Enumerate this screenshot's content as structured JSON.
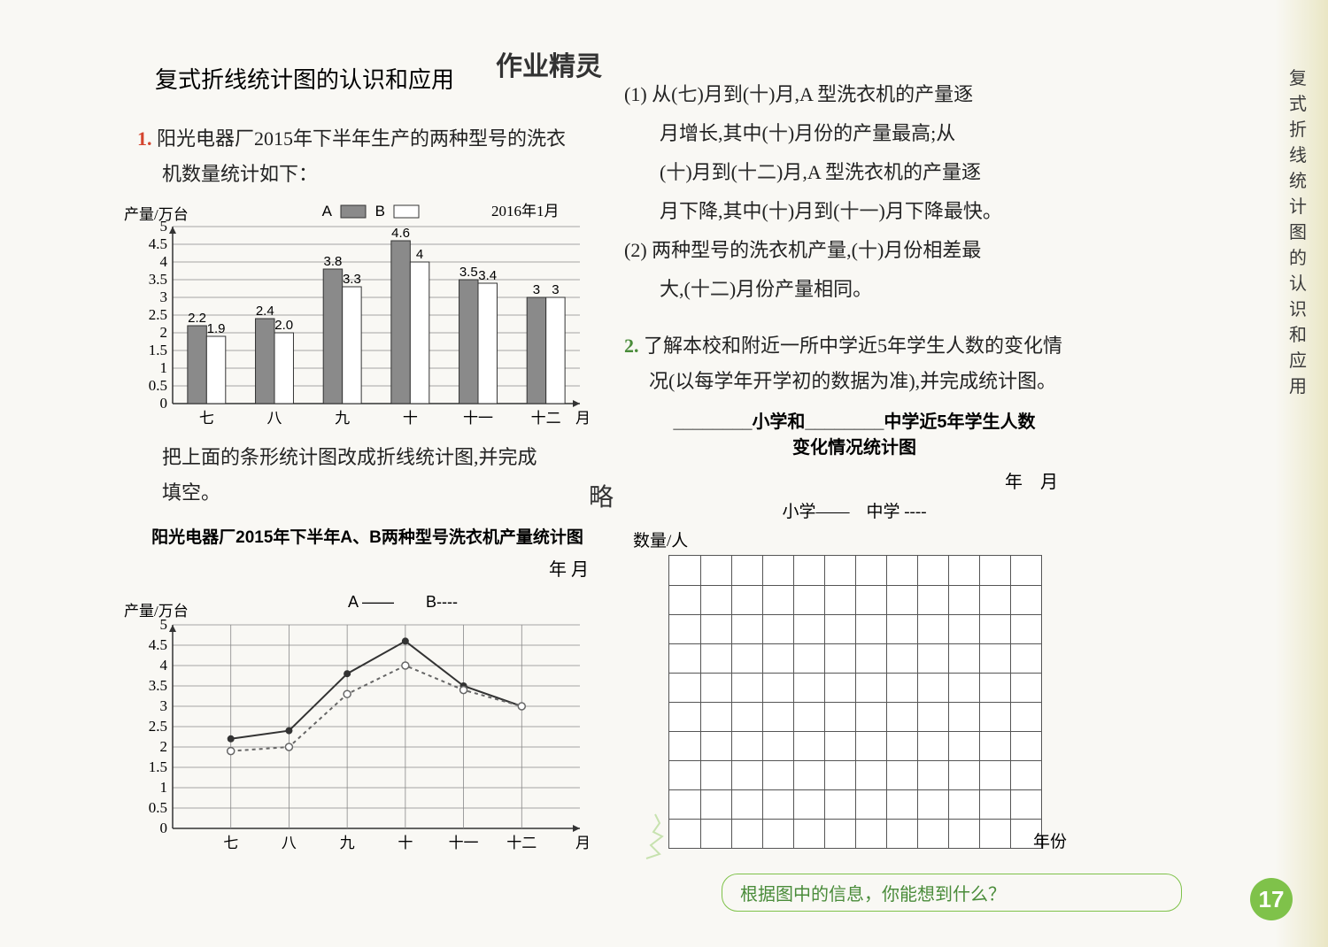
{
  "page_number": "17",
  "vertical_tab": "复式折线统计图的认识和应用",
  "top_annotation": "作业精灵",
  "title": "复式折线统计图的认识和应用",
  "q1": {
    "number": "1.",
    "text_line1": "阳光电器厂2015年下半年生产的两种型号的洗衣",
    "text_line2": "机数量统计如下：",
    "below_bar_1": "把上面的条形统计图改成折线统计图,并完成",
    "below_bar_2": "填空。",
    "line_title": "阳光电器厂2015年下半年A、B两种型号洗衣机产量统计图",
    "date_blank": "年 月"
  },
  "bar_chart": {
    "type": "bar",
    "y_axis_label": "产量/万台",
    "x_axis_label": "月份",
    "legend": {
      "A": "A",
      "B": "B",
      "date": "2016年1月"
    },
    "categories": [
      "七",
      "八",
      "九",
      "十",
      "十一",
      "十二"
    ],
    "series_A": [
      2.2,
      2.4,
      3.8,
      4.6,
      3.5,
      3.0
    ],
    "series_B": [
      1.9,
      2.0,
      3.3,
      4.0,
      3.4,
      3.0
    ],
    "color_A": "#8a8a8a",
    "color_B": "#ffffff",
    "border_color": "#333333",
    "grid_color": "#888888",
    "ylim": [
      0,
      5
    ],
    "ytick_step": 0.5,
    "value_labels_A": [
      "2.2",
      "2.4",
      "3.8",
      "4.6",
      "3.5",
      "3"
    ],
    "value_labels_B": [
      "1.9",
      "2.0",
      "3.3",
      "4",
      "3.4",
      "3"
    ],
    "label_fontsize": 15,
    "axis_fontsize": 17,
    "bar_width": 0.35
  },
  "line_chart": {
    "type": "line",
    "y_axis_label": "产量/万台",
    "x_axis_label": "月份",
    "legend": {
      "A": "A ——",
      "B": "B----"
    },
    "categories": [
      "七",
      "八",
      "九",
      "十",
      "十一",
      "十二"
    ],
    "series_A": [
      2.2,
      2.4,
      3.8,
      4.6,
      3.5,
      3.0
    ],
    "series_B": [
      1.9,
      2.0,
      3.3,
      4.0,
      3.4,
      3.0
    ],
    "color_A": "#333333",
    "color_B": "#666666",
    "grid_color": "#888888",
    "ylim": [
      0,
      5
    ],
    "ytick_step": 0.5,
    "axis_fontsize": 17,
    "marker_A": "circle",
    "marker_B": "circle",
    "dash_B": "4,4"
  },
  "q1_sub": {
    "p1_a": "(1) 从(",
    "ans1": "七",
    "p1_b": ")月到(",
    "ans2": "十",
    "p1_c": ")月,A 型洗衣机的产量逐",
    "p2_a": "月增长,其中(",
    "ans3": "十",
    "p2_b": ")月份的产量最高;从",
    "p3_a": "(",
    "ans4": "十",
    "p3_b": ")月到(",
    "ans5": "十二",
    "p3_c": ")月,A 型洗衣机的产量逐",
    "p4_a": "月下降,其中(",
    "ans6": "十",
    "p4_b": ")月到(",
    "ans7": "十一",
    "p4_c": ")月下降最快。",
    "p5_a": "(2) 两种型号的洗衣机产量,(",
    "ans8": "十",
    "p5_b": ")月份相差最",
    "p6_a": "大,(",
    "ans9": "十二",
    "p6_b": ")月份产量相同。"
  },
  "q2": {
    "number": "2.",
    "line1": "了解本校和附近一所中学近5年学生人数的变化情",
    "line2": "况(以每学年开学初的数据为准),并完成统计图。",
    "title_prefix": "________小学和________中学近5年学生人数",
    "title_sub": "变化情况统计图",
    "answer_note": "略",
    "date_blank": "年　月",
    "legend": "小学——　中学 ----",
    "y_label": "数量/人",
    "x_label": "年份",
    "callout": "根据图中的信息，你能想到什么？",
    "grid": {
      "rows": 10,
      "cols": 12,
      "border_color": "#555555",
      "bg": "#ffffff"
    }
  }
}
